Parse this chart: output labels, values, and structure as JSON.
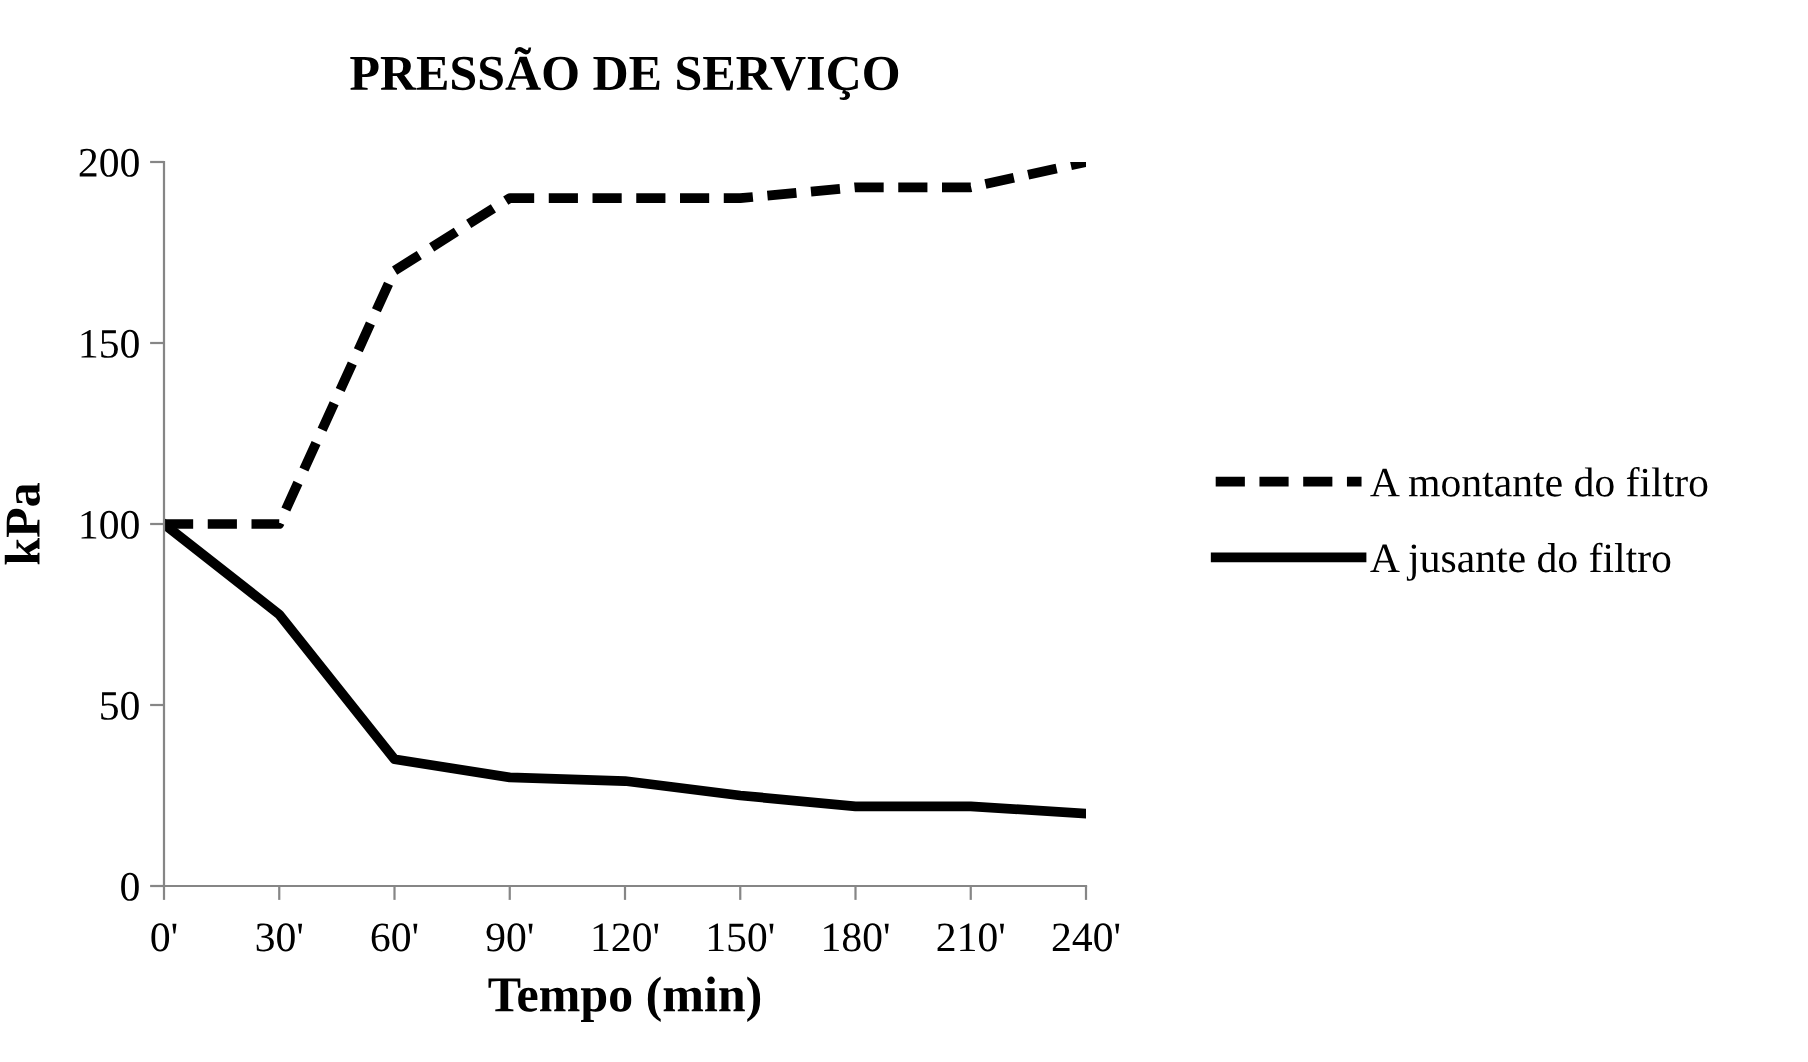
{
  "chart_data": {
    "type": "line",
    "title": "PRESSÃO DE SERVIÇO",
    "xlabel": "Tempo (min)",
    "ylabel": "kPa",
    "categories": [
      "0'",
      "30'",
      "60'",
      "90'",
      "120'",
      "150'",
      "180'",
      "210'",
      "240'"
    ],
    "series": [
      {
        "name": "A montante do filtro",
        "color": "#000000",
        "line_style": "dashed",
        "values": [
          100,
          100,
          170,
          190,
          190,
          190,
          193,
          193,
          200
        ]
      },
      {
        "name": "A jusante do filtro",
        "color": "#000000",
        "line_style": "solid",
        "values": [
          100,
          75,
          35,
          30,
          29,
          25,
          22,
          22,
          20
        ]
      }
    ],
    "ylim": [
      0,
      200
    ],
    "yticks": [
      0,
      50,
      100,
      150,
      200
    ],
    "grid": false,
    "legend": "right",
    "marker": "none"
  }
}
